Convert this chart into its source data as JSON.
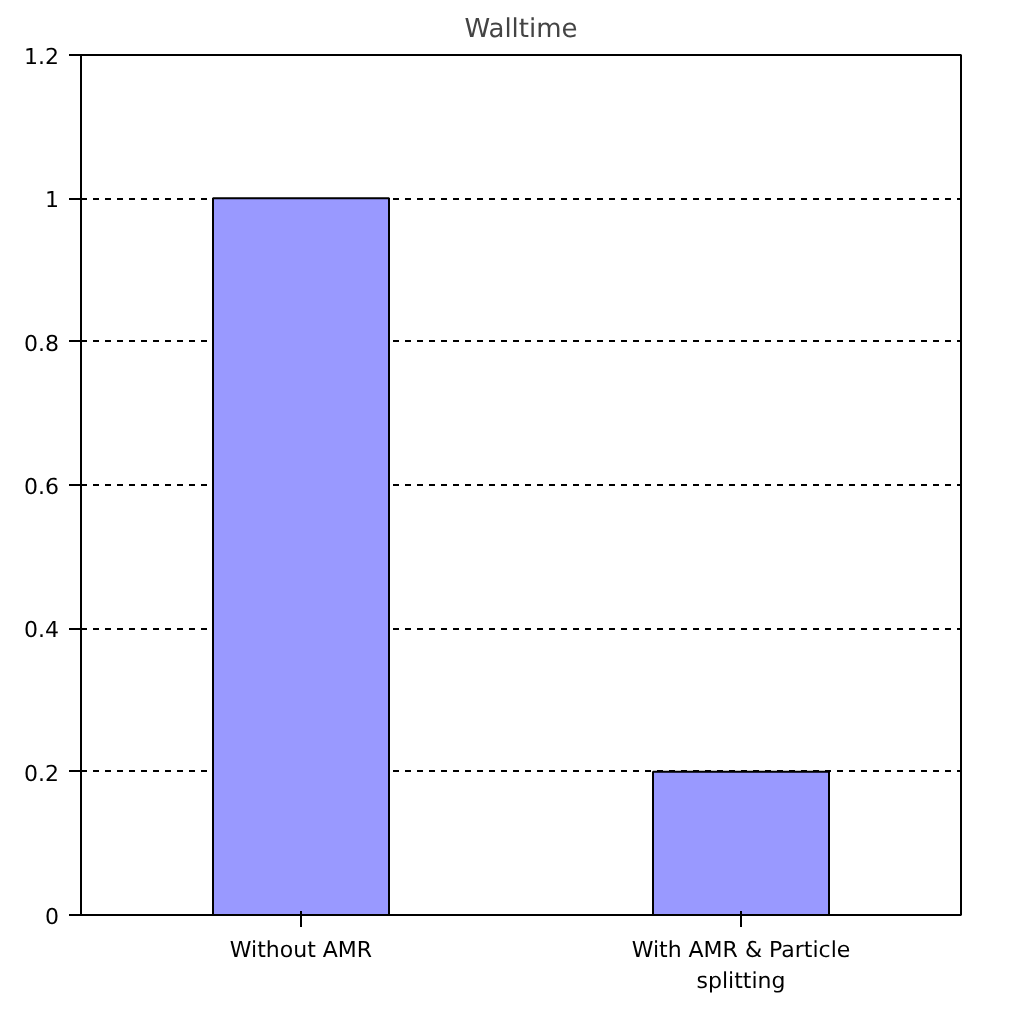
{
  "chart_data": {
    "type": "bar",
    "title": "Walltime",
    "categories": [
      "Without AMR",
      "With AMR & Particle splitting"
    ],
    "values": [
      1,
      0.2
    ],
    "color": "#9999ff",
    "ylim": [
      0,
      1.2
    ],
    "yticks": [
      0,
      0.2,
      0.4,
      0.6,
      0.8,
      1,
      1.2
    ],
    "grid": "y"
  }
}
